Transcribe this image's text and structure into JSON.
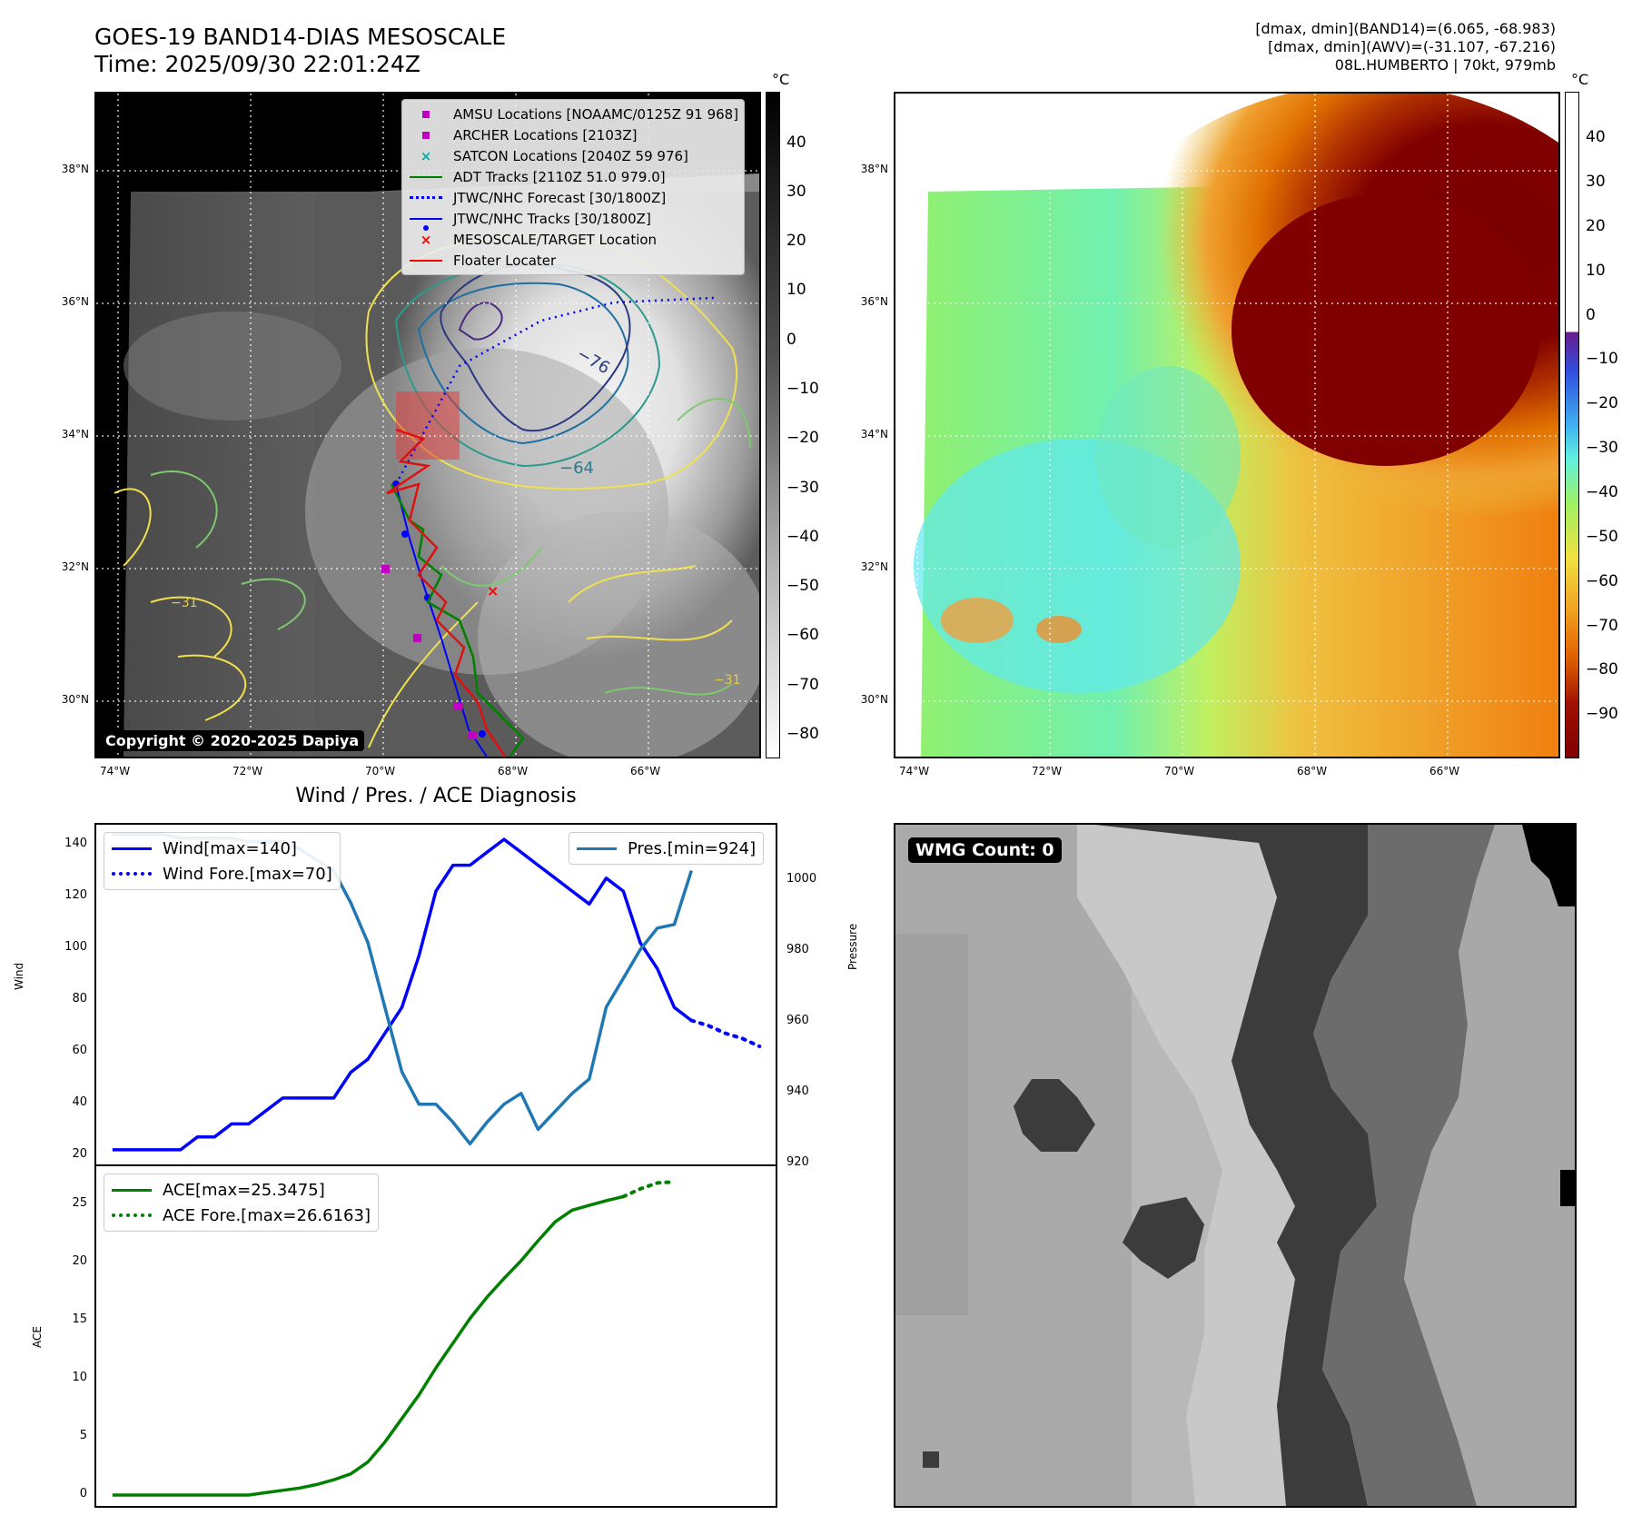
{
  "header": {
    "title_line1": "GOES-19 BAND14-DIAS MESOSCALE",
    "title_line2": "Time: 2025/09/30 22:01:24Z",
    "stats_line1": "[dmax, dmin](BAND14)=(6.065, -68.983)",
    "stats_line2": "[dmax, dmin](AWV)=(-31.107, -67.216)",
    "stats_line3": "08L.HUMBERTO | 70kt, 979mb"
  },
  "map_axes": {
    "lon_ticks": [
      "74°W",
      "72°W",
      "70°W",
      "68°W",
      "66°W"
    ],
    "lat_ticks": [
      "38°N",
      "36°N",
      "34°N",
      "32°N",
      "30°N"
    ]
  },
  "ir_panel": {
    "colorbar_unit": "°C",
    "colorbar_ticks": [
      "40",
      "30",
      "20",
      "10",
      "0",
      "−10",
      "−20",
      "−30",
      "−40",
      "−50",
      "−60",
      "−70",
      "−80"
    ],
    "copyright": "Copyright © 2020-2025 Dapiya",
    "contour_labels": [
      "−76",
      "−64",
      "−31",
      "−31"
    ],
    "legend": [
      {
        "label": "AMSU Locations [NOAAMC/0125Z 91 968]",
        "color": "#c000c0",
        "marker": "square"
      },
      {
        "label": "ARCHER Locations [2103Z]",
        "color": "#c000c0",
        "marker": "square"
      },
      {
        "label": "SATCON Locations [2040Z 59 976]",
        "color": "#00b0b0",
        "marker": "x"
      },
      {
        "label": "ADT Tracks [2110Z 51.0 979.0]",
        "color": "#008000",
        "marker": "line"
      },
      {
        "label": "JTWC/NHC Forecast [30/1800Z]",
        "color": "#0000ff",
        "marker": "dotted"
      },
      {
        "label": "JTWC/NHC Tracks [30/1800Z]",
        "color": "#0000ff",
        "marker": "line-dot"
      },
      {
        "label": "MESOSCALE/TARGET Location",
        "color": "#ff0000",
        "marker": "x"
      },
      {
        "label": "Floater Locater",
        "color": "#ff0000",
        "marker": "line"
      }
    ]
  },
  "awv_panel": {
    "colorbar_unit": "°C",
    "colorbar_ticks": [
      "40",
      "30",
      "20",
      "10",
      "0",
      "−10",
      "−20",
      "−30",
      "−40",
      "−50",
      "−60",
      "−70",
      "−80",
      "−90"
    ]
  },
  "wmg_panel": {
    "label": "WMG Count: 0"
  },
  "chart_data": [
    {
      "type": "line",
      "title": "Wind / Pres. / ACE Diagnosis",
      "ylabel": "Wind",
      "ylabel_right": "Pressure",
      "ylim": [
        14,
        146
      ],
      "ylim_right": [
        918,
        1013
      ],
      "y_ticks": [
        "20",
        "40",
        "60",
        "80",
        "100",
        "120",
        "140"
      ],
      "y_ticks_right": [
        "920",
        "940",
        "960",
        "980",
        "1000"
      ],
      "series": [
        {
          "name": "Wind[max=140]",
          "color": "#0000ff",
          "style": "solid",
          "axis": "left",
          "x": [
            0,
            1,
            2,
            3,
            4,
            5,
            6,
            7,
            8,
            9,
            10,
            11,
            12,
            13,
            14,
            15,
            16,
            17,
            18,
            19,
            20,
            21,
            22,
            23,
            24,
            25,
            26,
            27,
            28,
            29,
            30,
            31,
            32,
            33,
            34,
            35,
            36
          ],
          "values": [
            20,
            20,
            20,
            20,
            20,
            25,
            25,
            30,
            30,
            35,
            40,
            40,
            40,
            40,
            50,
            55,
            65,
            75,
            95,
            120,
            130,
            130,
            135,
            140,
            135,
            130,
            125,
            120,
            115,
            125,
            120,
            100,
            90,
            75,
            70,
            null,
            null
          ]
        },
        {
          "name": "Wind Fore.[max=70]",
          "color": "#0000ff",
          "style": "dotted",
          "axis": "left",
          "x": [
            34,
            35,
            36,
            37,
            38
          ],
          "values": [
            70,
            68,
            65,
            63,
            60
          ]
        },
        {
          "name": "Pres.[min=924]",
          "color": "#1f77b4",
          "style": "solid",
          "axis": "right",
          "x": [
            0,
            1,
            2,
            3,
            4,
            5,
            6,
            7,
            8,
            9,
            10,
            11,
            12,
            13,
            14,
            15,
            16,
            17,
            18,
            19,
            20,
            21,
            22,
            23,
            24,
            25,
            26,
            27,
            28,
            29,
            30,
            31,
            32,
            33,
            34
          ],
          "values": [
            1010,
            1010,
            1010,
            1010,
            1009,
            1009,
            1009,
            1009,
            1008,
            1008,
            1008,
            1006,
            1003,
            1000,
            991,
            980,
            962,
            944,
            935,
            935,
            930,
            924,
            930,
            935,
            938,
            928,
            933,
            938,
            942,
            962,
            970,
            978,
            984,
            985,
            1000
          ]
        }
      ]
    },
    {
      "type": "line",
      "ylabel": "ACE",
      "ylim": [
        -1,
        28
      ],
      "y_ticks": [
        "0",
        "5",
        "10",
        "15",
        "20",
        "25"
      ],
      "series": [
        {
          "name": "ACE[max=25.3475]",
          "color": "#008000",
          "style": "solid",
          "x": [
            0,
            2,
            4,
            6,
            8,
            9,
            10,
            11,
            12,
            13,
            14,
            15,
            16,
            17,
            18,
            19,
            20,
            21,
            22,
            23,
            24,
            25,
            26,
            27,
            28,
            29,
            30,
            31,
            32,
            33,
            34
          ],
          "values": [
            0,
            0,
            0,
            0,
            0,
            0.2,
            0.4,
            0.6,
            0.9,
            1.3,
            1.8,
            2.8,
            4.5,
            6.5,
            8.5,
            10.8,
            12.9,
            15.0,
            16.8,
            18.4,
            19.9,
            21.6,
            23.2,
            24.2,
            24.6,
            25.0,
            25.35,
            null,
            null,
            null,
            null
          ]
        },
        {
          "name": "ACE Fore.[max=26.6163]",
          "color": "#008000",
          "style": "dotted",
          "x": [
            30,
            31,
            32,
            33
          ],
          "values": [
            25.35,
            26.0,
            26.5,
            26.6
          ]
        }
      ]
    }
  ]
}
